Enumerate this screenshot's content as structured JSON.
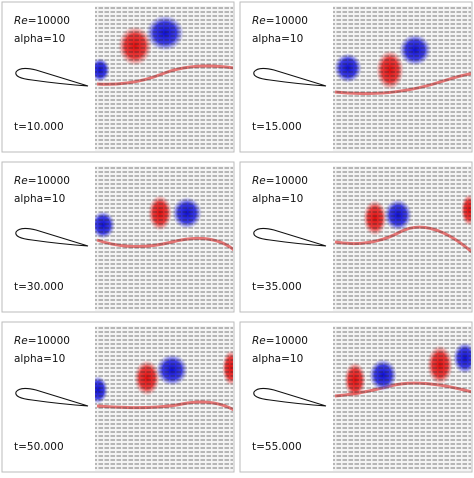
{
  "panels": [
    {
      "re_name": "Re",
      "re_value": "=10000",
      "alpha": "alpha=10",
      "time": "t=10.000"
    },
    {
      "re_name": "Re",
      "re_value": "=10000",
      "alpha": "alpha=10",
      "time": "t=15.000"
    },
    {
      "re_name": "Re",
      "re_value": "=10000",
      "alpha": "alpha=10",
      "time": "t=30.000"
    },
    {
      "re_name": "Re",
      "re_value": "=10000",
      "alpha": "alpha=10",
      "time": "t=35.000"
    },
    {
      "re_name": "Re",
      "re_value": "=10000",
      "alpha": "alpha=10",
      "time": "t=50.000"
    },
    {
      "re_name": "Re",
      "re_value": "=10000",
      "alpha": "alpha=10",
      "time": "t=55.000"
    }
  ]
}
